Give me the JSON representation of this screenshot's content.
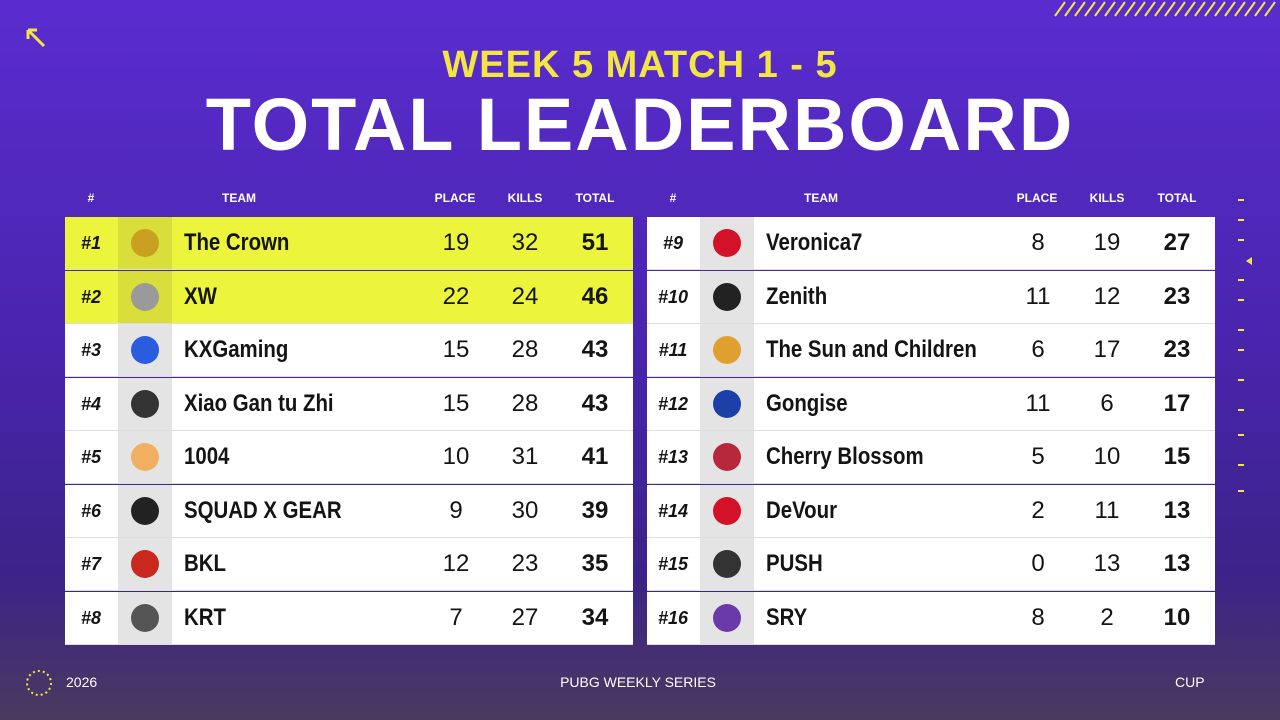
{
  "header": {
    "subtitle": "WEEK 5 MATCH 1 - 5",
    "title": "TOTAL LEADERBOARD"
  },
  "leaderboard": {
    "columns": [
      "#",
      "TEAM",
      "PLACE",
      "KILLS",
      "TOTAL"
    ],
    "rows": [
      [
        "#1",
        "The Crown",
        19,
        32,
        51
      ],
      [
        "#2",
        "XW",
        22,
        24,
        46
      ],
      [
        "#3",
        "KXGaming",
        15,
        28,
        43
      ],
      [
        "#4",
        "Xiao Gan tu Zhi",
        15,
        28,
        43
      ],
      [
        "#5",
        "1004",
        10,
        31,
        41
      ],
      [
        "#6",
        "SQUAD X GEAR",
        9,
        30,
        39
      ],
      [
        "#7",
        "BKL",
        12,
        23,
        35
      ],
      [
        "#8",
        "KRT",
        7,
        27,
        34
      ],
      [
        "#9",
        "Veronica7",
        8,
        19,
        27
      ],
      [
        "#10",
        "Zenith",
        11,
        12,
        23
      ],
      [
        "#11",
        "The Sun and Children",
        6,
        17,
        23
      ],
      [
        "#12",
        "Gongise",
        11,
        6,
        17
      ],
      [
        "#13",
        "Cherry Blossom",
        5,
        10,
        15
      ],
      [
        "#14",
        "DeVour",
        2,
        11,
        13
      ],
      [
        "#15",
        "PUSH",
        0,
        13,
        13
      ],
      [
        "#16",
        "SRY",
        8,
        2,
        10
      ]
    ]
  },
  "footer": {
    "left": "2026",
    "center": "PUBG WEEKLY SERIES",
    "right": "CUP"
  }
}
